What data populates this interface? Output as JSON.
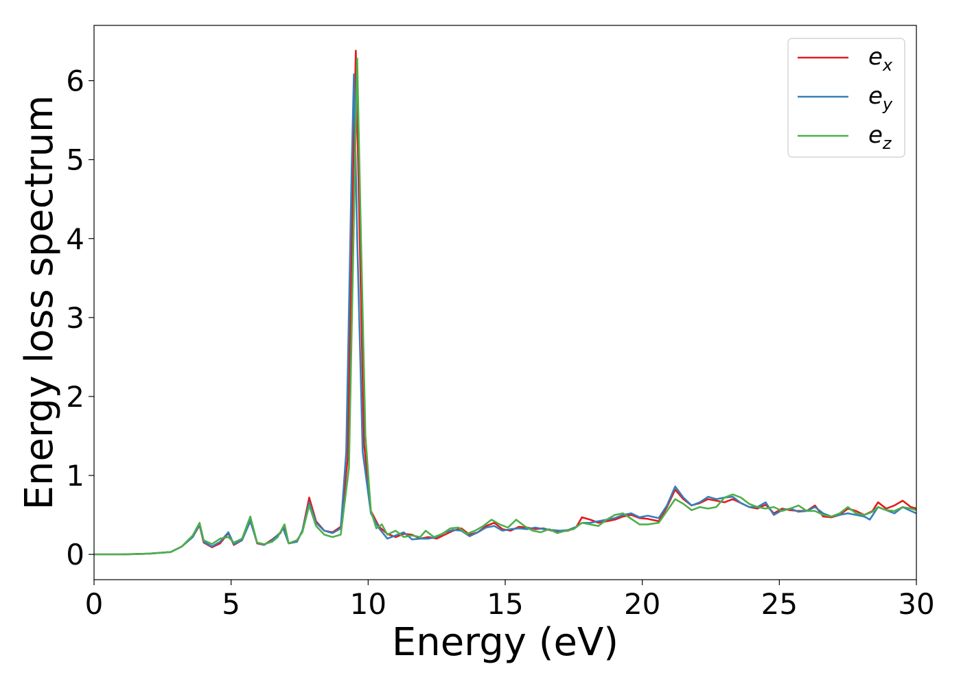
{
  "chart_data": {
    "type": "line",
    "title": "",
    "xlabel": "Energy (eV)",
    "ylabel": "Energy loss spectrum",
    "xlim": [
      0,
      30
    ],
    "ylim": [
      -0.32,
      6.7
    ],
    "xticks": [
      0,
      5,
      10,
      15,
      20,
      25,
      30
    ],
    "xtick_labels": [
      "0",
      "5",
      "10",
      "15",
      "20",
      "25",
      "30"
    ],
    "yticks": [
      0,
      1,
      2,
      3,
      4,
      5,
      6
    ],
    "ytick_labels": [
      "0",
      "1",
      "2",
      "3",
      "4",
      "5",
      "6"
    ],
    "grid": false,
    "legend_position": "top-right",
    "series": [
      {
        "name": "e_x",
        "label_base": "e",
        "label_sub": "x",
        "color": "#e41a1c",
        "points": [
          [
            0,
            0
          ],
          [
            1,
            0
          ],
          [
            2,
            0.01
          ],
          [
            2.8,
            0.03
          ],
          [
            3.2,
            0.1
          ],
          [
            3.6,
            0.22
          ],
          [
            3.85,
            0.37
          ],
          [
            4.0,
            0.15
          ],
          [
            4.3,
            0.09
          ],
          [
            4.6,
            0.14
          ],
          [
            4.9,
            0.27
          ],
          [
            5.1,
            0.12
          ],
          [
            5.4,
            0.18
          ],
          [
            5.7,
            0.44
          ],
          [
            5.95,
            0.14
          ],
          [
            6.2,
            0.12
          ],
          [
            6.5,
            0.19
          ],
          [
            6.8,
            0.27
          ],
          [
            6.9,
            0.35
          ],
          [
            7.1,
            0.14
          ],
          [
            7.4,
            0.16
          ],
          [
            7.6,
            0.3
          ],
          [
            7.85,
            0.72
          ],
          [
            8.1,
            0.42
          ],
          [
            8.4,
            0.3
          ],
          [
            8.7,
            0.28
          ],
          [
            9.0,
            0.35
          ],
          [
            9.25,
            1.2
          ],
          [
            9.45,
            4.8
          ],
          [
            9.55,
            6.38
          ],
          [
            9.68,
            4.2
          ],
          [
            9.85,
            1.4
          ],
          [
            10.1,
            0.55
          ],
          [
            10.4,
            0.35
          ],
          [
            10.7,
            0.26
          ],
          [
            11.0,
            0.22
          ],
          [
            11.3,
            0.26
          ],
          [
            11.6,
            0.25
          ],
          [
            11.9,
            0.2
          ],
          [
            12.2,
            0.22
          ],
          [
            12.5,
            0.2
          ],
          [
            12.8,
            0.25
          ],
          [
            13.1,
            0.3
          ],
          [
            13.4,
            0.33
          ],
          [
            13.7,
            0.25
          ],
          [
            14.0,
            0.28
          ],
          [
            14.3,
            0.36
          ],
          [
            14.6,
            0.4
          ],
          [
            14.9,
            0.32
          ],
          [
            15.2,
            0.3
          ],
          [
            15.5,
            0.35
          ],
          [
            15.8,
            0.34
          ],
          [
            16.1,
            0.32
          ],
          [
            16.4,
            0.33
          ],
          [
            16.7,
            0.3
          ],
          [
            17.0,
            0.29
          ],
          [
            17.3,
            0.3
          ],
          [
            17.6,
            0.35
          ],
          [
            17.8,
            0.47
          ],
          [
            18.1,
            0.44
          ],
          [
            18.4,
            0.4
          ],
          [
            18.7,
            0.42
          ],
          [
            19.0,
            0.44
          ],
          [
            19.3,
            0.48
          ],
          [
            19.6,
            0.5
          ],
          [
            19.9,
            0.46
          ],
          [
            20.2,
            0.45
          ],
          [
            20.6,
            0.42
          ],
          [
            20.9,
            0.6
          ],
          [
            21.2,
            0.82
          ],
          [
            21.5,
            0.7
          ],
          [
            21.8,
            0.62
          ],
          [
            22.1,
            0.65
          ],
          [
            22.4,
            0.7
          ],
          [
            22.7,
            0.68
          ],
          [
            23.0,
            0.66
          ],
          [
            23.3,
            0.7
          ],
          [
            23.6,
            0.65
          ],
          [
            23.9,
            0.6
          ],
          [
            24.2,
            0.58
          ],
          [
            24.5,
            0.63
          ],
          [
            24.8,
            0.52
          ],
          [
            25.1,
            0.58
          ],
          [
            25.4,
            0.56
          ],
          [
            25.7,
            0.55
          ],
          [
            26.0,
            0.55
          ],
          [
            26.3,
            0.62
          ],
          [
            26.6,
            0.48
          ],
          [
            26.9,
            0.47
          ],
          [
            27.2,
            0.5
          ],
          [
            27.5,
            0.58
          ],
          [
            27.8,
            0.55
          ],
          [
            28.1,
            0.5
          ],
          [
            28.4,
            0.55
          ],
          [
            28.6,
            0.66
          ],
          [
            28.9,
            0.58
          ],
          [
            29.2,
            0.62
          ],
          [
            29.5,
            0.68
          ],
          [
            29.8,
            0.6
          ],
          [
            30.0,
            0.58
          ]
        ]
      },
      {
        "name": "e_y",
        "label_base": "e",
        "label_sub": "y",
        "color": "#377eb8",
        "points": [
          [
            0,
            0
          ],
          [
            1,
            0
          ],
          [
            2,
            0.01
          ],
          [
            2.8,
            0.03
          ],
          [
            3.2,
            0.1
          ],
          [
            3.6,
            0.22
          ],
          [
            3.85,
            0.38
          ],
          [
            4.0,
            0.16
          ],
          [
            4.3,
            0.1
          ],
          [
            4.6,
            0.16
          ],
          [
            4.9,
            0.28
          ],
          [
            5.1,
            0.13
          ],
          [
            5.4,
            0.18
          ],
          [
            5.7,
            0.42
          ],
          [
            5.95,
            0.15
          ],
          [
            6.2,
            0.12
          ],
          [
            6.5,
            0.18
          ],
          [
            6.8,
            0.28
          ],
          [
            6.9,
            0.33
          ],
          [
            7.1,
            0.14
          ],
          [
            7.4,
            0.16
          ],
          [
            7.6,
            0.3
          ],
          [
            7.85,
            0.66
          ],
          [
            8.1,
            0.4
          ],
          [
            8.4,
            0.3
          ],
          [
            8.7,
            0.27
          ],
          [
            9.0,
            0.33
          ],
          [
            9.2,
            1.3
          ],
          [
            9.4,
            4.9
          ],
          [
            9.48,
            6.08
          ],
          [
            9.6,
            4.0
          ],
          [
            9.8,
            1.3
          ],
          [
            10.1,
            0.52
          ],
          [
            10.4,
            0.33
          ],
          [
            10.7,
            0.2
          ],
          [
            11.0,
            0.24
          ],
          [
            11.3,
            0.28
          ],
          [
            11.6,
            0.19
          ],
          [
            11.9,
            0.2
          ],
          [
            12.2,
            0.2
          ],
          [
            12.5,
            0.22
          ],
          [
            12.8,
            0.28
          ],
          [
            13.1,
            0.31
          ],
          [
            13.4,
            0.3
          ],
          [
            13.7,
            0.23
          ],
          [
            14.0,
            0.28
          ],
          [
            14.3,
            0.34
          ],
          [
            14.6,
            0.36
          ],
          [
            14.9,
            0.3
          ],
          [
            15.2,
            0.32
          ],
          [
            15.5,
            0.33
          ],
          [
            15.8,
            0.32
          ],
          [
            16.1,
            0.34
          ],
          [
            16.4,
            0.32
          ],
          [
            16.7,
            0.31
          ],
          [
            17.0,
            0.3
          ],
          [
            17.3,
            0.31
          ],
          [
            17.6,
            0.35
          ],
          [
            17.8,
            0.4
          ],
          [
            18.1,
            0.4
          ],
          [
            18.4,
            0.42
          ],
          [
            18.7,
            0.44
          ],
          [
            19.0,
            0.46
          ],
          [
            19.3,
            0.5
          ],
          [
            19.6,
            0.52
          ],
          [
            19.9,
            0.47
          ],
          [
            20.2,
            0.49
          ],
          [
            20.6,
            0.46
          ],
          [
            20.9,
            0.62
          ],
          [
            21.2,
            0.86
          ],
          [
            21.5,
            0.72
          ],
          [
            21.8,
            0.62
          ],
          [
            22.1,
            0.66
          ],
          [
            22.4,
            0.73
          ],
          [
            22.7,
            0.7
          ],
          [
            23.0,
            0.72
          ],
          [
            23.3,
            0.73
          ],
          [
            23.6,
            0.65
          ],
          [
            23.9,
            0.6
          ],
          [
            24.2,
            0.6
          ],
          [
            24.5,
            0.66
          ],
          [
            24.8,
            0.5
          ],
          [
            25.1,
            0.56
          ],
          [
            25.4,
            0.58
          ],
          [
            25.7,
            0.54
          ],
          [
            26.0,
            0.55
          ],
          [
            26.3,
            0.6
          ],
          [
            26.6,
            0.52
          ],
          [
            26.9,
            0.48
          ],
          [
            27.2,
            0.5
          ],
          [
            27.5,
            0.52
          ],
          [
            27.8,
            0.5
          ],
          [
            28.1,
            0.48
          ],
          [
            28.3,
            0.44
          ],
          [
            28.6,
            0.6
          ],
          [
            28.9,
            0.56
          ],
          [
            29.2,
            0.52
          ],
          [
            29.5,
            0.6
          ],
          [
            29.8,
            0.55
          ],
          [
            30.0,
            0.52
          ]
        ]
      },
      {
        "name": "e_z",
        "label_base": "e",
        "label_sub": "z",
        "color": "#4daf4a",
        "points": [
          [
            0,
            0
          ],
          [
            1,
            0
          ],
          [
            2,
            0.01
          ],
          [
            2.8,
            0.03
          ],
          [
            3.2,
            0.1
          ],
          [
            3.6,
            0.24
          ],
          [
            3.85,
            0.4
          ],
          [
            4.0,
            0.18
          ],
          [
            4.3,
            0.13
          ],
          [
            4.6,
            0.2
          ],
          [
            4.9,
            0.22
          ],
          [
            5.1,
            0.15
          ],
          [
            5.4,
            0.2
          ],
          [
            5.7,
            0.48
          ],
          [
            5.95,
            0.15
          ],
          [
            6.2,
            0.13
          ],
          [
            6.5,
            0.16
          ],
          [
            6.7,
            0.22
          ],
          [
            6.95,
            0.38
          ],
          [
            7.1,
            0.14
          ],
          [
            7.4,
            0.18
          ],
          [
            7.6,
            0.28
          ],
          [
            7.85,
            0.62
          ],
          [
            8.1,
            0.36
          ],
          [
            8.4,
            0.25
          ],
          [
            8.7,
            0.22
          ],
          [
            9.0,
            0.25
          ],
          [
            9.3,
            1.1
          ],
          [
            9.5,
            4.6
          ],
          [
            9.6,
            6.28
          ],
          [
            9.72,
            4.3
          ],
          [
            9.9,
            1.5
          ],
          [
            10.1,
            0.55
          ],
          [
            10.3,
            0.33
          ],
          [
            10.5,
            0.38
          ],
          [
            10.7,
            0.25
          ],
          [
            11.0,
            0.3
          ],
          [
            11.3,
            0.22
          ],
          [
            11.6,
            0.24
          ],
          [
            11.9,
            0.22
          ],
          [
            12.1,
            0.3
          ],
          [
            12.4,
            0.22
          ],
          [
            12.7,
            0.26
          ],
          [
            13.0,
            0.33
          ],
          [
            13.3,
            0.34
          ],
          [
            13.6,
            0.26
          ],
          [
            13.9,
            0.3
          ],
          [
            14.2,
            0.36
          ],
          [
            14.5,
            0.44
          ],
          [
            14.8,
            0.38
          ],
          [
            15.1,
            0.34
          ],
          [
            15.4,
            0.44
          ],
          [
            15.7,
            0.36
          ],
          [
            16.0,
            0.3
          ],
          [
            16.3,
            0.28
          ],
          [
            16.6,
            0.32
          ],
          [
            16.9,
            0.27
          ],
          [
            17.2,
            0.3
          ],
          [
            17.5,
            0.32
          ],
          [
            17.8,
            0.4
          ],
          [
            18.1,
            0.38
          ],
          [
            18.4,
            0.36
          ],
          [
            18.7,
            0.44
          ],
          [
            19.0,
            0.5
          ],
          [
            19.3,
            0.52
          ],
          [
            19.6,
            0.45
          ],
          [
            19.9,
            0.38
          ],
          [
            20.2,
            0.38
          ],
          [
            20.6,
            0.4
          ],
          [
            20.9,
            0.55
          ],
          [
            21.2,
            0.7
          ],
          [
            21.5,
            0.64
          ],
          [
            21.8,
            0.56
          ],
          [
            22.1,
            0.6
          ],
          [
            22.4,
            0.58
          ],
          [
            22.7,
            0.6
          ],
          [
            23.0,
            0.72
          ],
          [
            23.3,
            0.76
          ],
          [
            23.6,
            0.72
          ],
          [
            23.9,
            0.64
          ],
          [
            24.2,
            0.6
          ],
          [
            24.5,
            0.58
          ],
          [
            24.8,
            0.6
          ],
          [
            25.1,
            0.55
          ],
          [
            25.4,
            0.58
          ],
          [
            25.7,
            0.62
          ],
          [
            26.0,
            0.55
          ],
          [
            26.3,
            0.55
          ],
          [
            26.6,
            0.5
          ],
          [
            26.9,
            0.48
          ],
          [
            27.2,
            0.52
          ],
          [
            27.5,
            0.6
          ],
          [
            27.8,
            0.52
          ],
          [
            28.1,
            0.5
          ],
          [
            28.4,
            0.54
          ],
          [
            28.6,
            0.6
          ],
          [
            28.9,
            0.56
          ],
          [
            29.2,
            0.55
          ],
          [
            29.5,
            0.6
          ],
          [
            29.8,
            0.58
          ],
          [
            30.0,
            0.56
          ]
        ]
      }
    ]
  }
}
